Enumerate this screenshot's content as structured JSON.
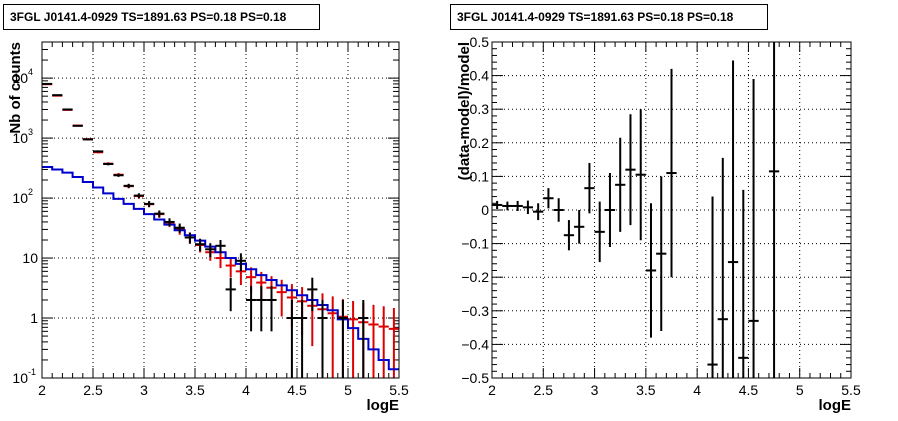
{
  "panels": {
    "left": {
      "title": "3FGL J0141.4-0929 TS=1891.63 PS=0.18 PS=0.18"
    },
    "right": {
      "title": "3FGL J0141.4-0929 TS=1891.63 PS=0.18 PS=0.18"
    }
  },
  "colors": {
    "data": "#000000",
    "model_total": "#dd0000",
    "model_source": "#0000cc",
    "grid": "#000000"
  },
  "chart_data": [
    {
      "type": "line",
      "title": "3FGL J0141.4-0929 TS=1891.63 PS=0.18 PS=0.18",
      "xlabel": "logE",
      "ylabel": "Nb of counts",
      "xlim": [
        2,
        5.5
      ],
      "ylim": [
        0.1,
        40000
      ],
      "yscale": "log",
      "grid": true,
      "x_ticks": [
        "2",
        "2.5",
        "3",
        "3.5",
        "4",
        "4.5",
        "5",
        "5.5"
      ],
      "y_ticks": [
        {
          "value": 0.1,
          "label": "10",
          "exp": "-1"
        },
        {
          "value": 1,
          "label": "1",
          "exp": ""
        },
        {
          "value": 10,
          "label": "10",
          "exp": ""
        },
        {
          "value": 100,
          "label": "10",
          "exp": "2"
        },
        {
          "value": 1000,
          "label": "10",
          "exp": "3"
        },
        {
          "value": 10000,
          "label": "10",
          "exp": "4"
        }
      ],
      "bin_edges": [
        2,
        2.1,
        2.2,
        2.3,
        2.4,
        2.5,
        2.6,
        2.7,
        2.8,
        2.9,
        3,
        3.1,
        3.2,
        3.3,
        3.4,
        3.5,
        3.6,
        3.7,
        3.8,
        3.9,
        4,
        4.1,
        4.2,
        4.3,
        4.4,
        4.5,
        4.6,
        4.7,
        4.8,
        4.9,
        5,
        5.1,
        5.2,
        5.3,
        5.4,
        5.5
      ],
      "series": [
        {
          "style": "errorbars",
          "x": [
            2.05,
            2.15,
            2.25,
            2.35,
            2.45,
            2.55,
            2.65,
            2.75,
            2.85,
            2.95,
            3.05,
            3.15,
            3.25,
            3.35,
            3.45,
            3.55,
            3.65,
            3.75,
            3.85,
            3.95,
            4.05,
            4.15,
            4.25,
            4.35,
            4.45,
            4.55,
            4.65,
            4.75,
            4.85,
            4.95,
            5.05,
            5.15,
            5.25,
            5.35,
            5.45
          ],
          "y": [
            8000,
            5200,
            3000,
            1600,
            950,
            600,
            370,
            240,
            160,
            110,
            80,
            55,
            40,
            32,
            22,
            17,
            14,
            16,
            3,
            9,
            2,
            2,
            2,
            0,
            1,
            1,
            3,
            1,
            0,
            1,
            0,
            1,
            0,
            0,
            0
          ],
          "yerr": [
            90,
            72,
            55,
            40,
            31,
            24,
            19,
            15,
            13,
            10,
            9,
            7,
            6,
            5.6,
            4.6,
            4,
            3.7,
            4,
            1.7,
            3,
            1.4,
            1.4,
            1.4,
            0,
            1,
            1,
            1.7,
            1,
            0,
            1,
            0,
            1,
            0,
            0,
            0
          ]
        },
        {
          "style": "errorbars",
          "x": [
            2.05,
            2.15,
            2.25,
            2.35,
            2.45,
            2.55,
            2.65,
            2.75,
            2.85,
            2.95,
            3.05,
            3.15,
            3.25,
            3.35,
            3.45,
            3.55,
            3.65,
            3.75,
            3.85,
            3.95,
            4.05,
            4.15,
            4.25,
            4.35,
            4.45,
            4.55,
            4.65,
            4.75,
            4.85,
            4.95,
            5.05,
            5.15,
            5.25,
            5.35,
            5.45
          ],
          "y": [
            7900,
            5100,
            2950,
            1620,
            960,
            580,
            375,
            245,
            158,
            108,
            79,
            54,
            39,
            30,
            22,
            16.5,
            12.5,
            10,
            7.5,
            6,
            4.8,
            3.9,
            3.2,
            2.7,
            2.2,
            1.9,
            1.6,
            1.4,
            1.2,
            1.05,
            0.95,
            0.85,
            0.78,
            0.72,
            0.66
          ],
          "yerr": [
            89,
            71,
            54,
            40,
            31,
            24,
            19,
            15.6,
            12.6,
            10.4,
            8.9,
            7.3,
            6.2,
            5.5,
            4.7,
            4.1,
            3.5,
            3.2,
            2.7,
            2.45,
            2.2,
            1.97,
            1.79,
            1.64,
            1.48,
            1.38,
            1.26,
            1.18,
            1.1,
            1.02,
            0.97,
            0.92,
            0.88,
            0.85,
            0.81
          ]
        },
        {
          "style": "step",
          "values": [
            330,
            300,
            265,
            225,
            185,
            150,
            120,
            97,
            80,
            66,
            54,
            44,
            36,
            29,
            24,
            19.5,
            15.5,
            12.5,
            10,
            8,
            6.5,
            5.2,
            4.3,
            3.5,
            2.9,
            2.4,
            2,
            1.65,
            1.35,
            0.95,
            0.68,
            0.45,
            0.3,
            0.2,
            0.14
          ]
        }
      ]
    },
    {
      "type": "scatter",
      "title": "3FGL J0141.4-0929 TS=1891.63 PS=0.18 PS=0.18",
      "xlabel": "logE",
      "ylabel": "(data-model)/model",
      "xlim": [
        2,
        5.5
      ],
      "ylim": [
        -0.5,
        0.5
      ],
      "grid": true,
      "x_ticks": [
        "2",
        "2.5",
        "3",
        "3.5",
        "4",
        "4.5",
        "5",
        "5.5"
      ],
      "y_ticks": [
        "−0.5",
        "−0.4",
        "−0.3",
        "−0.2",
        "−0.1",
        "0",
        "0.1",
        "0.2",
        "0.3",
        "0.4",
        "0.5"
      ],
      "y_tick_values": [
        -0.5,
        -0.4,
        -0.3,
        -0.2,
        -0.1,
        0,
        0.1,
        0.2,
        0.3,
        0.4,
        0.5
      ],
      "series": [
        {
          "style": "errorbars",
          "x": [
            2.05,
            2.15,
            2.25,
            2.35,
            2.45,
            2.55,
            2.65,
            2.75,
            2.85,
            2.95,
            3.05,
            3.15,
            3.25,
            3.35,
            3.45,
            3.55,
            3.65,
            3.75,
            4.15,
            4.25,
            4.35,
            4.45,
            4.55,
            4.75
          ],
          "y": [
            0.015,
            0.012,
            0.012,
            0.008,
            -0.005,
            0.035,
            0.0,
            -0.075,
            -0.05,
            0.065,
            -0.065,
            0.0,
            0.075,
            0.12,
            0.105,
            -0.18,
            -0.13,
            0.11,
            -0.46,
            -0.325,
            -0.155,
            -0.44,
            -0.33,
            0.115
          ],
          "yerr": [
            0.012,
            0.013,
            0.015,
            0.02,
            0.025,
            0.03,
            0.035,
            0.045,
            0.05,
            0.075,
            0.09,
            0.11,
            0.14,
            0.165,
            0.195,
            0.2,
            0.23,
            0.31,
            0.5,
            0.48,
            0.6,
            0.5,
            0.72,
            0.7
          ]
        }
      ]
    }
  ]
}
